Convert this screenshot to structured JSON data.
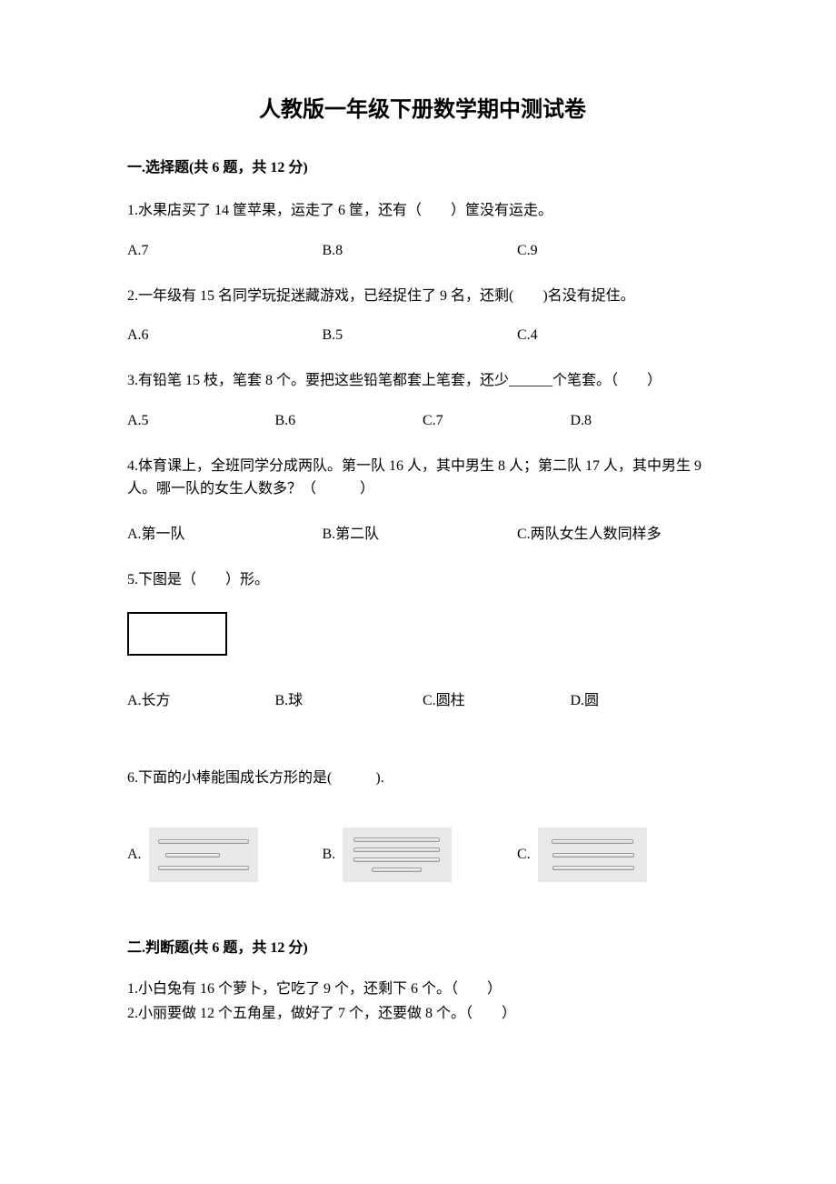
{
  "title": "人教版一年级下册数学期中测试卷",
  "section1": {
    "header": "一.选择题(共 6 题，共 12 分)",
    "q1": {
      "text": "1.水果店买了 14 筐苹果，运走了 6 筐，还有（　　）筐没有运走。",
      "optA": "A.7",
      "optB": "B.8",
      "optC": "C.9"
    },
    "q2": {
      "text": "2.一年级有 15 名同学玩捉迷藏游戏，已经捉住了 9 名，还剩(　　)名没有捉住。",
      "optA": "A.6",
      "optB": "B.5",
      "optC": "C.4"
    },
    "q3": {
      "text": "3.有铅笔 15 枝，笔套 8 个。要把这些铅笔都套上笔套，还少______个笔套。（　　）",
      "optA": "A.5",
      "optB": "B.6",
      "optC": "C.7",
      "optD": "D.8"
    },
    "q4": {
      "text": "4.体育课上，全班同学分成两队。第一队 16 人，其中男生 8 人；第二队 17 人，其中男生 9 人。哪一队的女生人数多？（　　　）",
      "optA": "A.第一队",
      "optB": "B.第二队",
      "optC": "C.两队女生人数同样多"
    },
    "q5": {
      "text": "5.下图是（　　）形。",
      "optA": "A.长方",
      "optB": "B.球",
      "optC": "C.圆柱",
      "optD": "D.圆",
      "shape": {
        "type": "rectangle",
        "width": 110,
        "height": 48,
        "border_color": "#000000",
        "border_width": 2,
        "fill": "#ffffff"
      }
    },
    "q6": {
      "text": "6.下面的小棒能围成长方形的是(　　　).",
      "optA": "A.",
      "optB": "B.",
      "optC": "C.",
      "images": {
        "bg_color": "#e8e8e8",
        "stick_gradient": [
          "#ffffff",
          "#cccccc"
        ],
        "stick_border": "#999999",
        "A": {
          "sticks": [
            100,
            60,
            100
          ]
        },
        "B": {
          "sticks": [
            95,
            95,
            95,
            55
          ]
        },
        "C": {
          "sticks": [
            90,
            90,
            90
          ]
        }
      }
    }
  },
  "section2": {
    "header": "二.判断题(共 6 题，共 12 分)",
    "q1": "1.小白兔有 16 个萝卜，它吃了 9 个，还剩下 6 个。（　　）",
    "q2": "2.小丽要做 12 个五角星，做好了 7 个，还要做 8 个。（　　）"
  },
  "colors": {
    "text": "#000000",
    "background": "#ffffff"
  },
  "fonts": {
    "title_family": "SimHei",
    "body_family": "SimSun",
    "title_size": 24,
    "body_size": 16
  }
}
